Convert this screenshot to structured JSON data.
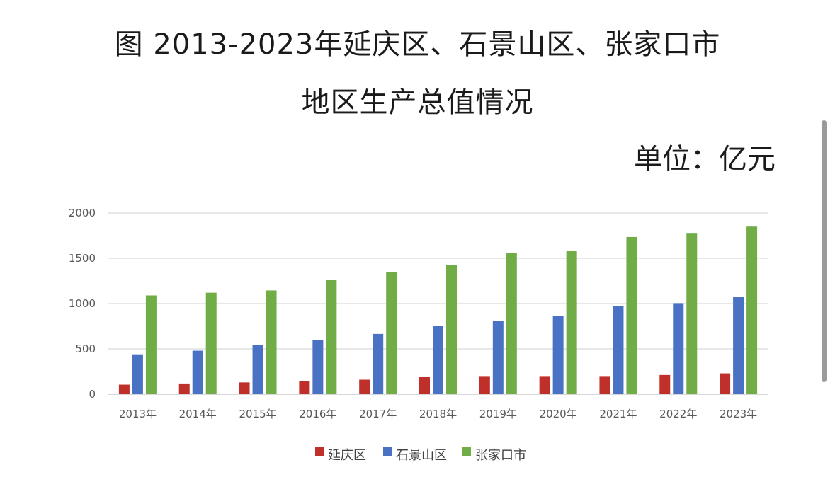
{
  "title_line1": "图 2013-2023年延庆区、石景山区、张家口市",
  "title_line2": "地区生产总值情况",
  "unit_label": "单位：亿元",
  "chart_data": {
    "type": "bar",
    "title": "图 2013-2023年延庆区、石景山区、张家口市 地区生产总值情况",
    "unit": "单位：亿元",
    "categories": [
      "2013年",
      "2014年",
      "2015年",
      "2016年",
      "2017年",
      "2018年",
      "2019年",
      "2020年",
      "2021年",
      "2022年",
      "2023年"
    ],
    "series": [
      {
        "name": "延庆区",
        "color": "#c0302a",
        "values": [
          105,
          118,
          130,
          145,
          160,
          188,
          200,
          200,
          200,
          212,
          230
        ]
      },
      {
        "name": "石景山区",
        "color": "#4a72c4",
        "values": [
          440,
          480,
          540,
          595,
          665,
          750,
          805,
          865,
          975,
          1005,
          1075
        ]
      },
      {
        "name": "张家口市",
        "color": "#70ad47",
        "values": [
          1090,
          1120,
          1145,
          1260,
          1345,
          1425,
          1555,
          1580,
          1735,
          1780,
          1850
        ]
      }
    ],
    "yticks": [
      0,
      500,
      1000,
      1500,
      2000
    ],
    "ylim": [
      0,
      2000
    ],
    "grid": true,
    "legend": "bottom"
  }
}
